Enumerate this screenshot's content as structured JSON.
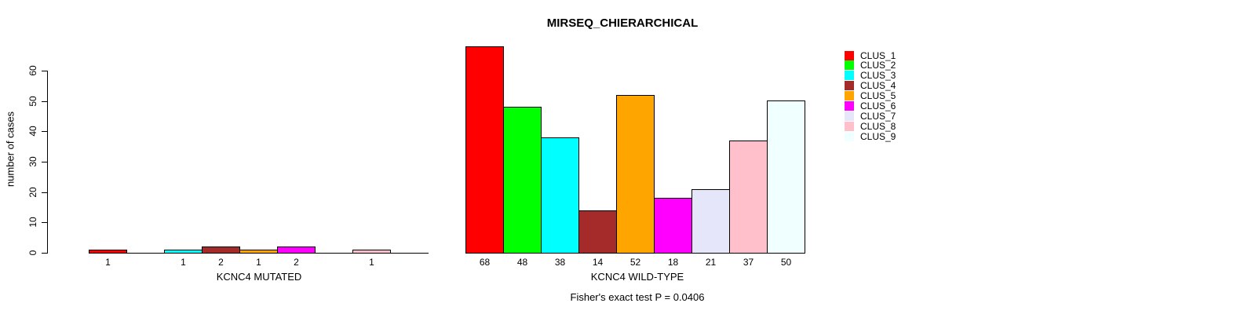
{
  "figure": {
    "title": "MIRSEQ_CHIERARCHICAL",
    "ylabel": "number of cases",
    "annotation": "Fisher's exact test P = 0.0406"
  },
  "legend": {
    "items": [
      {
        "label": "CLUS_1",
        "color": "#FF0000"
      },
      {
        "label": "CLUS_2",
        "color": "#00FF00"
      },
      {
        "label": "CLUS_3",
        "color": "#00FFFF"
      },
      {
        "label": "CLUS_4",
        "color": "#A52A2A"
      },
      {
        "label": "CLUS_5",
        "color": "#FFA500"
      },
      {
        "label": "CLUS_6",
        "color": "#FF00FF"
      },
      {
        "label": "CLUS_7",
        "color": "#E6E6FA"
      },
      {
        "label": "CLUS_8",
        "color": "#FFC0CB"
      },
      {
        "label": "CLUS_9",
        "color": "#F0FFFF"
      }
    ]
  },
  "chart_data": {
    "type": "bar",
    "title": "MIRSEQ_CHIERARCHICAL",
    "ylabel": "number of cases",
    "ylim": [
      0,
      68
    ],
    "y_ticks": [
      0,
      10,
      20,
      30,
      40,
      50,
      60
    ],
    "grid": false,
    "legend_position": "right",
    "categories": [
      "CLUS_1",
      "CLUS_2",
      "CLUS_3",
      "CLUS_4",
      "CLUS_5",
      "CLUS_6",
      "CLUS_7",
      "CLUS_8",
      "CLUS_9"
    ],
    "colors": [
      "#FF0000",
      "#00FF00",
      "#00FFFF",
      "#A52A2A",
      "#FFA500",
      "#FF00FF",
      "#E6E6FA",
      "#FFC0CB",
      "#F0FFFF"
    ],
    "panels": [
      {
        "id": "mutated",
        "xlabel": "KCNC4 MUTATED",
        "values": [
          1,
          0,
          1,
          2,
          1,
          2,
          0,
          1,
          0
        ]
      },
      {
        "id": "wild-type",
        "xlabel": "KCNC4 WILD-TYPE",
        "values": [
          68,
          48,
          38,
          14,
          52,
          18,
          21,
          37,
          50
        ]
      }
    ],
    "annotation": "Fisher's exact test P = 0.0406",
    "bar_border_color": "#000000",
    "background_color": "#FFFFFF"
  }
}
